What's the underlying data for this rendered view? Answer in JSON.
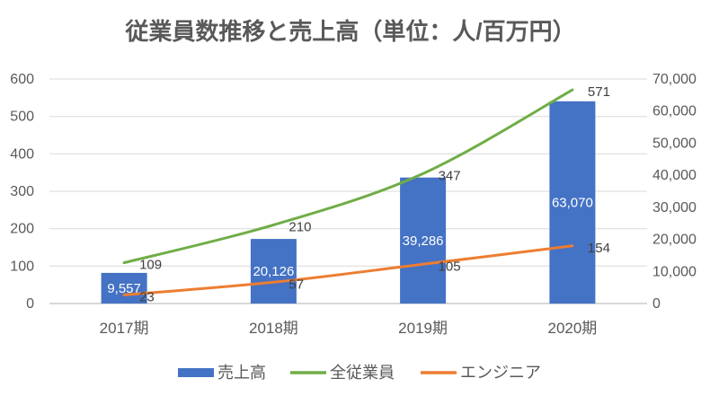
{
  "chart_data": {
    "type": "combo",
    "title": "従業員数推移と売上高（単位：人/百万円）",
    "categories": [
      "2017期",
      "2018期",
      "2019期",
      "2020期"
    ],
    "series": [
      {
        "name": "売上高",
        "type": "bar",
        "axis": "right",
        "color": "#4472C4",
        "values": [
          9557,
          20126,
          39286,
          63070
        ],
        "labels": [
          "9,557",
          "20,126",
          "39,286",
          "63,070"
        ],
        "label_color": "#ffffff"
      },
      {
        "name": "全従業員",
        "type": "line",
        "axis": "left",
        "color": "#70AD47",
        "values": [
          109,
          210,
          347,
          571
        ],
        "labels": [
          "109",
          "210",
          "347",
          "571"
        ],
        "label_color": "#404040"
      },
      {
        "name": "エンジニア",
        "type": "line",
        "axis": "left",
        "color": "#ED7D31",
        "values": [
          23,
          57,
          105,
          154
        ],
        "labels": [
          "23",
          "57",
          "105",
          "154"
        ],
        "label_color": "#404040"
      }
    ],
    "left_axis": {
      "min": 0,
      "max": 600,
      "step": 100,
      "ticks": [
        "0",
        "100",
        "200",
        "300",
        "400",
        "500",
        "600"
      ]
    },
    "right_axis": {
      "min": 0,
      "max": 70000,
      "step": 10000,
      "ticks": [
        "0",
        "10,000",
        "20,000",
        "30,000",
        "40,000",
        "50,000",
        "60,000",
        "70,000"
      ]
    },
    "grid": true,
    "legend_position": "bottom",
    "colors": {
      "gridline": "#D9D9D9",
      "axis_line": "#BFBFBF",
      "axis_text": "#595959",
      "title_text": "#595959",
      "data_label_text": "#404040"
    }
  }
}
